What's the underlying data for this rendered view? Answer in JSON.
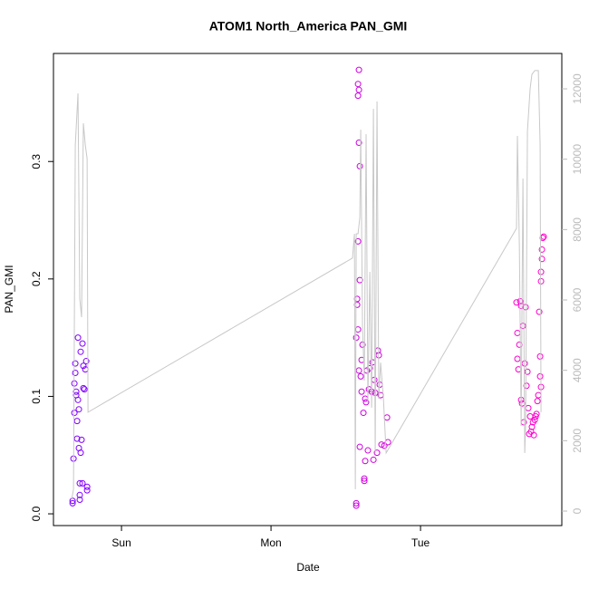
{
  "chart_data": {
    "type": "scatter",
    "title": "ATOM1 North_America PAN_GMI",
    "x_label": "Date",
    "y_label": "PAN_GMI",
    "xlim": [
      -0.455,
      2.945
    ],
    "xticks": [
      {
        "value": 0,
        "label": "Sun"
      },
      {
        "value": 1,
        "label": "Mon"
      },
      {
        "value": 2,
        "label": "Tue"
      }
    ],
    "ylim": [
      -0.01,
      0.392
    ],
    "yticks": [
      {
        "value": 0,
        "label": "0.0"
      },
      0.1,
      0.2,
      0.3
    ],
    "y2lim": [
      -412,
      13005
    ],
    "y2ticks": [
      0,
      2000,
      4000,
      6000,
      8000,
      10000,
      12000
    ],
    "y2_color": "#bbbbbb",
    "series": [
      {
        "type": "scatter",
        "color_gradient": [
          "#7f00ff",
          "#ff00cc"
        ],
        "x": [
          -0.327,
          -0.327,
          -0.321,
          -0.315,
          -0.315,
          -0.309,
          -0.309,
          -0.303,
          -0.303,
          -0.297,
          -0.297,
          -0.291,
          -0.291,
          -0.285,
          -0.285,
          -0.279,
          -0.279,
          -0.273,
          -0.273,
          -0.267,
          -0.261,
          -0.261,
          -0.255,
          -0.255,
          -0.248,
          -0.242,
          -0.236,
          -0.23,
          -0.23,
          -0.279,
          1.57,
          1.57,
          1.57,
          1.576,
          1.576,
          1.582,
          1.582,
          1.588,
          1.588,
          1.594,
          1.594,
          1.588,
          1.582,
          1.582,
          1.588,
          1.594,
          1.6,
          1.606,
          1.606,
          1.612,
          1.618,
          1.624,
          1.624,
          1.63,
          1.636,
          1.642,
          1.648,
          1.655,
          1.661,
          1.673,
          1.679,
          1.685,
          1.691,
          1.697,
          1.709,
          1.715,
          1.721,
          1.727,
          1.733,
          1.739,
          1.758,
          1.776,
          1.782,
          1.63,
          2.642,
          2.648,
          2.648,
          2.655,
          2.661,
          2.667,
          2.673,
          2.673,
          2.679,
          2.685,
          2.691,
          2.697,
          2.703,
          2.709,
          2.715,
          2.721,
          2.727,
          2.733,
          2.739,
          2.745,
          2.752,
          2.758,
          2.764,
          2.77,
          2.776,
          2.782,
          2.788,
          2.794,
          2.8,
          2.806,
          2.806,
          2.812,
          2.812,
          2.818,
          2.824,
          2.8,
          2.806
        ],
        "values": [
          0.009,
          0.011,
          0.047,
          0.086,
          0.111,
          0.128,
          0.12,
          0.104,
          0.101,
          0.079,
          0.064,
          0.15,
          0.097,
          0.089,
          0.056,
          0.016,
          0.026,
          0.052,
          0.138,
          0.063,
          0.145,
          0.026,
          0.107,
          0.126,
          0.106,
          0.123,
          0.13,
          0.02,
          0.023,
          0.012,
          0.009,
          0.007,
          0.15,
          0.183,
          0.178,
          0.232,
          0.157,
          0.122,
          0.316,
          0.296,
          0.057,
          0.378,
          0.366,
          0.356,
          0.361,
          0.199,
          0.117,
          0.131,
          0.104,
          0.144,
          0.086,
          0.03,
          0.028,
          0.045,
          0.095,
          0.122,
          0.054,
          0.106,
          0.124,
          0.104,
          0.129,
          0.046,
          0.114,
          0.103,
          0.052,
          0.139,
          0.135,
          0.11,
          0.101,
          0.059,
          0.058,
          0.082,
          0.061,
          0.098,
          0.18,
          0.132,
          0.154,
          0.123,
          0.144,
          0.181,
          0.177,
          0.097,
          0.094,
          0.16,
          0.078,
          0.128,
          0.176,
          0.109,
          0.121,
          0.09,
          0.068,
          0.083,
          0.07,
          0.074,
          0.078,
          0.067,
          0.08,
          0.083,
          0.085,
          0.096,
          0.101,
          0.172,
          0.134,
          0.198,
          0.206,
          0.217,
          0.225,
          0.235,
          0.236,
          0.117,
          0.108
        ]
      },
      {
        "type": "line",
        "axis": "y2",
        "color": "#c8c8c8",
        "x": [
          -0.333,
          -0.321,
          -0.309,
          -0.291,
          -0.279,
          -0.267,
          -0.255,
          -0.242,
          -0.23,
          -0.224,
          1.545,
          1.558,
          1.564,
          1.57,
          1.582,
          1.594,
          1.6,
          1.612,
          1.624,
          1.636,
          1.648,
          1.661,
          1.673,
          1.685,
          1.697,
          1.709,
          1.721,
          1.733,
          1.752,
          1.77,
          2.642,
          2.648,
          2.661,
          2.673,
          2.685,
          2.697,
          2.703,
          2.715,
          2.733,
          2.745,
          2.764,
          2.788,
          2.8,
          2.806
        ],
        "values": [
          335,
          620,
          10400,
          11870,
          6030,
          5510,
          11020,
          10400,
          10020,
          2810,
          7190,
          7880,
          620,
          7880,
          7880,
          8340,
          10840,
          5250,
          3710,
          10710,
          3060,
          6800,
          2940,
          11430,
          1650,
          11640,
          3190,
          4220,
          3190,
          1650,
          8035,
          10660,
          7570,
          2420,
          9450,
          1650,
          2420,
          10790,
          12000,
          12410,
          12520,
          12520,
          10400,
          2810
        ]
      }
    ]
  }
}
